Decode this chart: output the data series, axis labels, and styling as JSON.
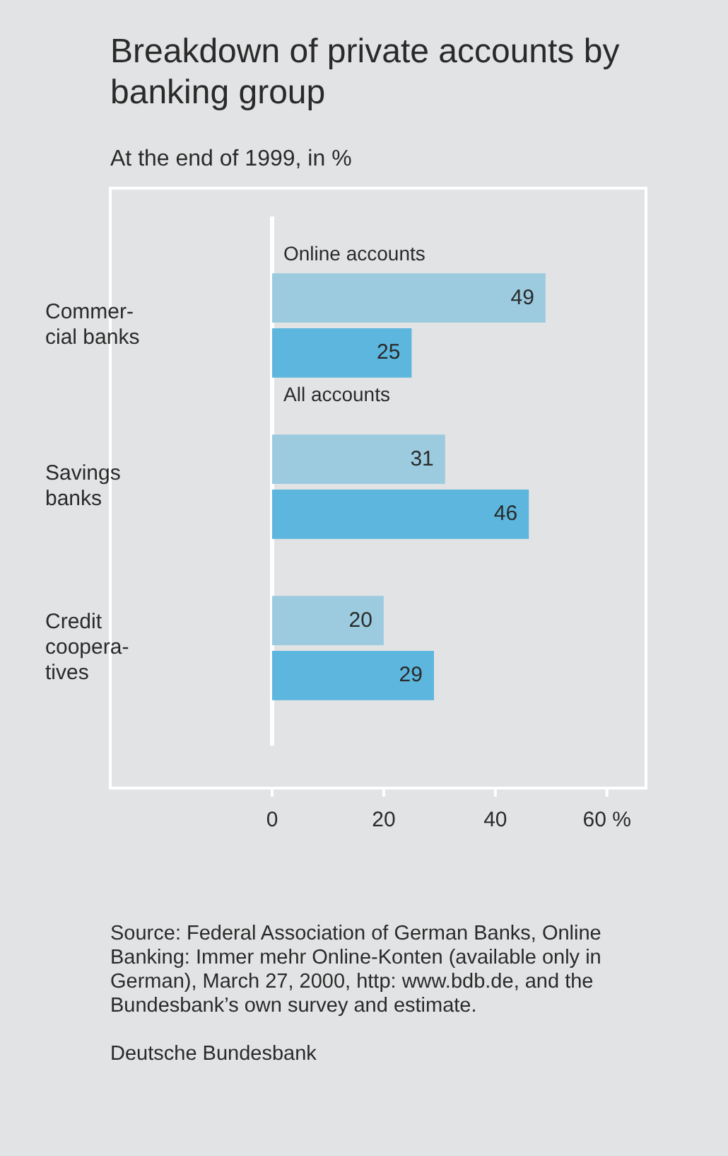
{
  "chart_data": {
    "type": "bar",
    "orientation": "horizontal",
    "title": "Breakdown of private accounts by banking group",
    "subtitle": "At the end of 1999, in %",
    "categories": [
      "Commer-\ncial banks",
      "Savings\nbanks",
      "Credit\ncoopera-\ntives"
    ],
    "series": [
      {
        "name": "Online accounts",
        "color": "#9ccbe0",
        "values": [
          49,
          31,
          20
        ]
      },
      {
        "name": "All accounts",
        "color": "#5cb6dd",
        "values": [
          25,
          46,
          29
        ]
      }
    ],
    "xlim": [
      -29,
      67
    ],
    "xticks": [
      0,
      20,
      40,
      {
        "value": 60,
        "label": "60 %"
      }
    ],
    "ref_lines": [
      {
        "axis": "x",
        "value": 0,
        "color": "#ffffff"
      }
    ],
    "data_labels": true,
    "grid": false,
    "legend": false,
    "annotations": [
      "Source: Federal Association of German Banks, Online Banking: Immer mehr Online-Konten (available only in German), March 27, 2000, http: www.bdb.de, and the Bundesbank’s own survey and estimate.",
      "Deutsche Bundesbank"
    ]
  }
}
